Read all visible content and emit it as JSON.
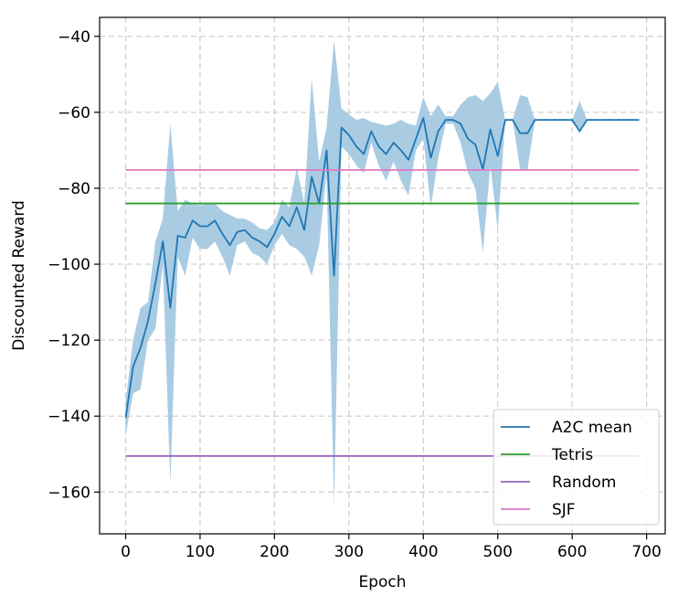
{
  "chart_data": {
    "type": "line",
    "title": "",
    "xlabel": "Epoch",
    "ylabel": "Discounted Reward",
    "xlim": [
      -35,
      725
    ],
    "ylim": [
      -171,
      -35
    ],
    "xticks": [
      0,
      100,
      200,
      300,
      400,
      500,
      600,
      700
    ],
    "yticks": [
      -160,
      -140,
      -120,
      -100,
      -80,
      -60,
      -40
    ],
    "xtick_labels": [
      "0",
      "100",
      "200",
      "300",
      "400",
      "500",
      "600",
      "700"
    ],
    "ytick_labels": [
      "−160",
      "−140",
      "−120",
      "−100",
      "−80",
      "−60",
      "−40"
    ],
    "grid": true,
    "legend_position": "bottom-right",
    "colors": {
      "a2c": "#1f77b4",
      "band": "#a9cce3",
      "tetris": "#2ca02c",
      "random": "#9467bd",
      "sjf": "#e377c2",
      "grid": "#d0d0d0"
    },
    "series": [
      {
        "name": "A2C mean",
        "x": [
          0,
          10,
          20,
          30,
          40,
          50,
          60,
          70,
          80,
          90,
          100,
          110,
          120,
          130,
          140,
          150,
          160,
          170,
          180,
          190,
          200,
          210,
          220,
          230,
          240,
          250,
          260,
          270,
          280,
          290,
          300,
          310,
          320,
          330,
          340,
          350,
          360,
          370,
          380,
          390,
          400,
          410,
          420,
          430,
          440,
          450,
          460,
          470,
          480,
          490,
          500,
          510,
          520,
          530,
          540,
          550,
          560,
          570,
          580,
          590,
          600,
          610,
          620,
          630,
          640,
          650,
          660,
          670,
          680,
          690
        ],
        "y": [
          -140.5,
          -127,
          -122,
          -115,
          -105,
          -94,
          -111.5,
          -92.5,
          -93,
          -88.5,
          -90,
          -90,
          -88.5,
          -92,
          -95,
          -91.5,
          -91,
          -93,
          -94,
          -95.5,
          -92,
          -87.5,
          -90,
          -85,
          -91,
          -77,
          -84,
          -70,
          -103,
          -64,
          -66,
          -69,
          -71,
          -65,
          -69,
          -71,
          -68,
          -70,
          -72.5,
          -67,
          -61.5,
          -72,
          -65,
          -62,
          -62,
          -63,
          -67,
          -68.5,
          -75,
          -64.5,
          -71.5,
          -62,
          -62,
          -65.5,
          -65.5,
          -62,
          -62,
          -62,
          -62,
          -62,
          -62,
          -65,
          -62,
          -62,
          -62,
          -62,
          -62,
          -62,
          -62,
          -62
        ]
      },
      {
        "name": "Tetris",
        "x": [
          0,
          690
        ],
        "y": [
          -84,
          -84
        ]
      },
      {
        "name": "Random",
        "x": [
          0,
          690
        ],
        "y": [
          -150.5,
          -150.5
        ]
      },
      {
        "name": "SJF",
        "x": [
          0,
          690
        ],
        "y": [
          -75.2,
          -75.2
        ]
      }
    ],
    "band": {
      "series": "A2C mean",
      "upper": [
        -136,
        -120,
        -111.5,
        -110,
        -94,
        -88,
        -63,
        -86,
        -83,
        -84,
        -84.5,
        -84,
        -84,
        -86,
        -87,
        -88,
        -88,
        -89,
        -90.5,
        -91,
        -89,
        -83,
        -85,
        -74.5,
        -84,
        -51,
        -73,
        -64,
        -41,
        -59,
        -60.5,
        -62,
        -61.5,
        -62.5,
        -63,
        -63.5,
        -63,
        -62,
        -63,
        -63.5,
        -56,
        -61,
        -58,
        -61,
        -61,
        -58,
        -56,
        -55.5,
        -57,
        -55,
        -52,
        -62,
        -62,
        -55.5,
        -56,
        -62,
        -62,
        -62,
        -62,
        -62,
        -62,
        -57,
        -62,
        -62,
        -62,
        -62,
        -62,
        -62,
        -62,
        -62
      ],
      "lower": [
        -145,
        -134,
        -133,
        -120,
        -117,
        -100,
        -158,
        -98,
        -103,
        -93,
        -96,
        -96,
        -94,
        -98,
        -103,
        -95,
        -94,
        -97,
        -98,
        -100,
        -95,
        -92,
        -95,
        -96,
        -98,
        -103,
        -95,
        -76,
        -164,
        -69,
        -71,
        -74,
        -76,
        -68,
        -74,
        -78,
        -73,
        -78,
        -82,
        -70,
        -67,
        -85,
        -72,
        -63,
        -63,
        -68,
        -76,
        -80,
        -97,
        -74,
        -91,
        -62,
        -62,
        -75,
        -75,
        -62,
        -62,
        -62,
        -62,
        -62,
        -62,
        -65,
        -62,
        -62,
        -62,
        -62,
        -62,
        -62,
        -62,
        -62
      ]
    }
  }
}
